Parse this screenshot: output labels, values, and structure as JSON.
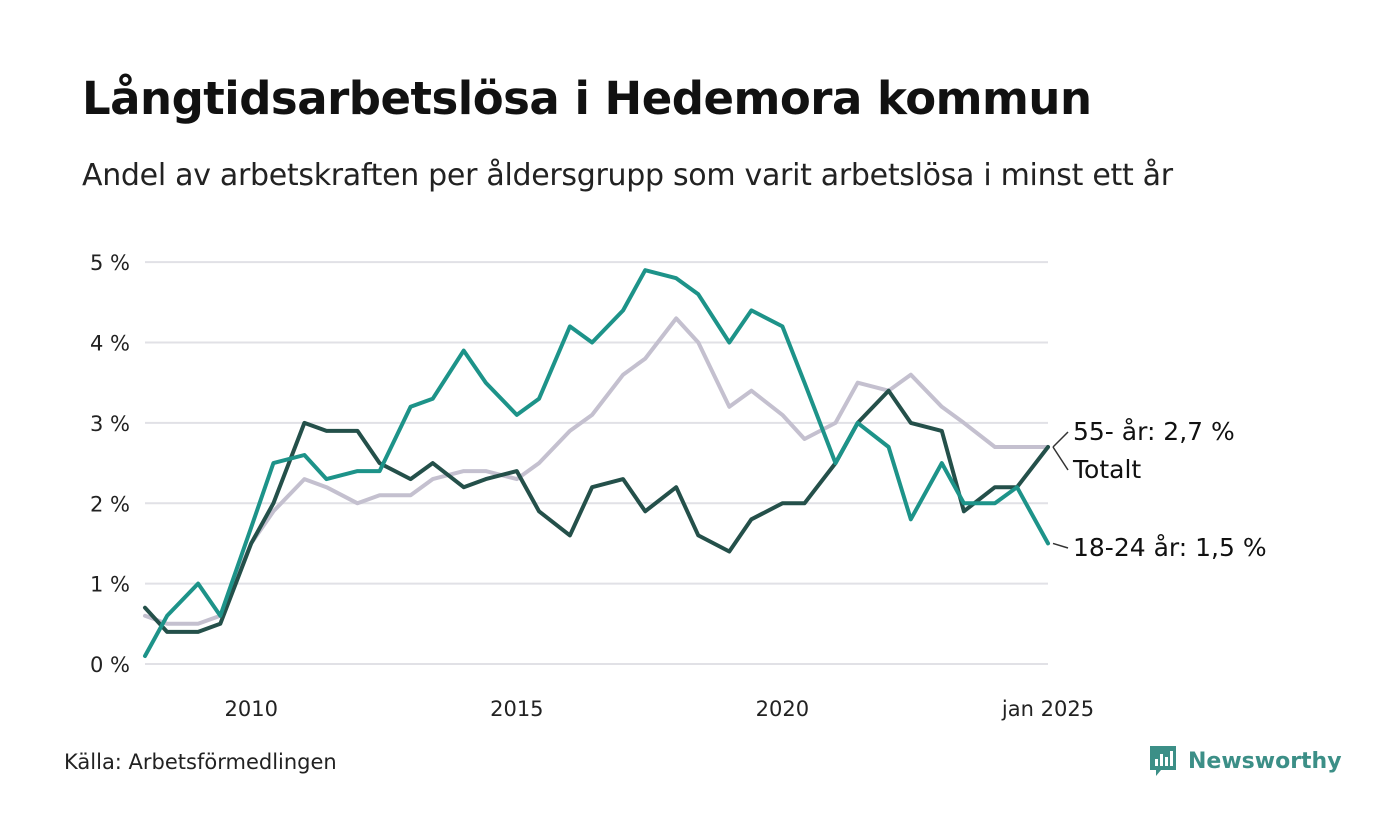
{
  "title": "Långtidsarbetslösa i Hedemora kommun",
  "subtitle": "Andel av arbetskraften per åldersgrupp som varit arbetslösa i minst ett år",
  "source": "Källa: Arbetsförmedlingen",
  "brand": {
    "name": "Newsworthy",
    "icon": "bar-chart-speech-bubble-icon",
    "color": "#3c8f87"
  },
  "chart_data": {
    "type": "line",
    "x_range": [
      "2008-01",
      "2025-01"
    ],
    "x_ticks": [
      {
        "label": "2010",
        "value": "2010-01"
      },
      {
        "label": "2015",
        "value": "2015-01"
      },
      {
        "label": "2020",
        "value": "2020-01"
      },
      {
        "label": "jan 2025",
        "value": "2025-01"
      }
    ],
    "y_ticks": [
      {
        "label": "0 %",
        "value": 0
      },
      {
        "label": "1 %",
        "value": 1
      },
      {
        "label": "2 %",
        "value": 2
      },
      {
        "label": "3 %",
        "value": 3
      },
      {
        "label": "4 %",
        "value": 4
      },
      {
        "label": "5 %",
        "value": 5
      }
    ],
    "ylim": [
      0,
      5.4
    ],
    "grid": "horizontal",
    "series": [
      {
        "name": "55-",
        "end_label": "55- år: 2,7 %",
        "color": "#c4c0cf",
        "points": [
          [
            "2008-01",
            0.6
          ],
          [
            "2008-06",
            0.5
          ],
          [
            "2009-01",
            0.5
          ],
          [
            "2009-06",
            0.6
          ],
          [
            "2010-01",
            1.5
          ],
          [
            "2010-06",
            1.9
          ],
          [
            "2011-01",
            2.3
          ],
          [
            "2011-06",
            2.2
          ],
          [
            "2012-01",
            2.0
          ],
          [
            "2012-06",
            2.1
          ],
          [
            "2013-01",
            2.1
          ],
          [
            "2013-06",
            2.3
          ],
          [
            "2014-01",
            2.4
          ],
          [
            "2014-06",
            2.4
          ],
          [
            "2015-01",
            2.3
          ],
          [
            "2015-06",
            2.5
          ],
          [
            "2016-01",
            2.9
          ],
          [
            "2016-06",
            3.1
          ],
          [
            "2017-01",
            3.6
          ],
          [
            "2017-06",
            3.8
          ],
          [
            "2018-01",
            4.3
          ],
          [
            "2018-06",
            4.0
          ],
          [
            "2019-01",
            3.2
          ],
          [
            "2019-06",
            3.4
          ],
          [
            "2020-01",
            3.1
          ],
          [
            "2020-06",
            2.8
          ],
          [
            "2021-01",
            3.0
          ],
          [
            "2021-06",
            3.5
          ],
          [
            "2022-01",
            3.4
          ],
          [
            "2022-06",
            3.6
          ],
          [
            "2023-01",
            3.2
          ],
          [
            "2023-06",
            3.0
          ],
          [
            "2024-01",
            2.7
          ],
          [
            "2024-06",
            2.7
          ],
          [
            "2025-01",
            2.7
          ]
        ]
      },
      {
        "name": "Totalt",
        "end_label": "Totalt",
        "color": "#24504a",
        "points": [
          [
            "2008-01",
            0.7
          ],
          [
            "2008-06",
            0.4
          ],
          [
            "2009-01",
            0.4
          ],
          [
            "2009-06",
            0.5
          ],
          [
            "2010-01",
            1.5
          ],
          [
            "2010-06",
            2.0
          ],
          [
            "2011-01",
            3.0
          ],
          [
            "2011-06",
            2.9
          ],
          [
            "2012-01",
            2.9
          ],
          [
            "2012-06",
            2.5
          ],
          [
            "2013-01",
            2.3
          ],
          [
            "2013-06",
            2.5
          ],
          [
            "2014-01",
            2.2
          ],
          [
            "2014-06",
            2.3
          ],
          [
            "2015-01",
            2.4
          ],
          [
            "2015-06",
            1.9
          ],
          [
            "2016-01",
            1.6
          ],
          [
            "2016-06",
            2.2
          ],
          [
            "2017-01",
            2.3
          ],
          [
            "2017-06",
            1.9
          ],
          [
            "2018-01",
            2.2
          ],
          [
            "2018-06",
            1.6
          ],
          [
            "2019-01",
            1.4
          ],
          [
            "2019-06",
            1.8
          ],
          [
            "2020-01",
            2.0
          ],
          [
            "2020-06",
            2.0
          ],
          [
            "2021-01",
            2.5
          ],
          [
            "2021-06",
            3.0
          ],
          [
            "2022-01",
            3.4
          ],
          [
            "2022-06",
            3.0
          ],
          [
            "2023-01",
            2.9
          ],
          [
            "2023-06",
            1.9
          ],
          [
            "2024-01",
            2.2
          ],
          [
            "2024-06",
            2.2
          ],
          [
            "2025-01",
            2.7
          ]
        ]
      },
      {
        "name": "18-24",
        "end_label": "18-24 år: 1,5 %",
        "color": "#1d9389",
        "points": [
          [
            "2008-01",
            0.1
          ],
          [
            "2008-06",
            0.6
          ],
          [
            "2009-01",
            1.0
          ],
          [
            "2009-06",
            0.6
          ],
          [
            "2010-01",
            1.7
          ],
          [
            "2010-06",
            2.5
          ],
          [
            "2011-01",
            2.6
          ],
          [
            "2011-06",
            2.3
          ],
          [
            "2012-01",
            2.4
          ],
          [
            "2012-06",
            2.4
          ],
          [
            "2013-01",
            3.2
          ],
          [
            "2013-06",
            3.3
          ],
          [
            "2014-01",
            3.9
          ],
          [
            "2014-06",
            3.5
          ],
          [
            "2015-01",
            3.1
          ],
          [
            "2015-06",
            3.3
          ],
          [
            "2016-01",
            4.2
          ],
          [
            "2016-06",
            4.0
          ],
          [
            "2017-01",
            4.4
          ],
          [
            "2017-06",
            4.9
          ],
          [
            "2018-01",
            4.8
          ],
          [
            "2018-06",
            4.6
          ],
          [
            "2019-01",
            4.0
          ],
          [
            "2019-06",
            4.4
          ],
          [
            "2020-01",
            4.2
          ],
          [
            "2020-06",
            3.5
          ],
          [
            "2021-01",
            2.5
          ],
          [
            "2021-06",
            3.0
          ],
          [
            "2022-01",
            2.7
          ],
          [
            "2022-06",
            1.8
          ],
          [
            "2023-01",
            2.5
          ],
          [
            "2023-06",
            2.0
          ],
          [
            "2024-01",
            2.0
          ],
          [
            "2024-06",
            2.2
          ],
          [
            "2025-01",
            1.5
          ]
        ]
      }
    ]
  }
}
